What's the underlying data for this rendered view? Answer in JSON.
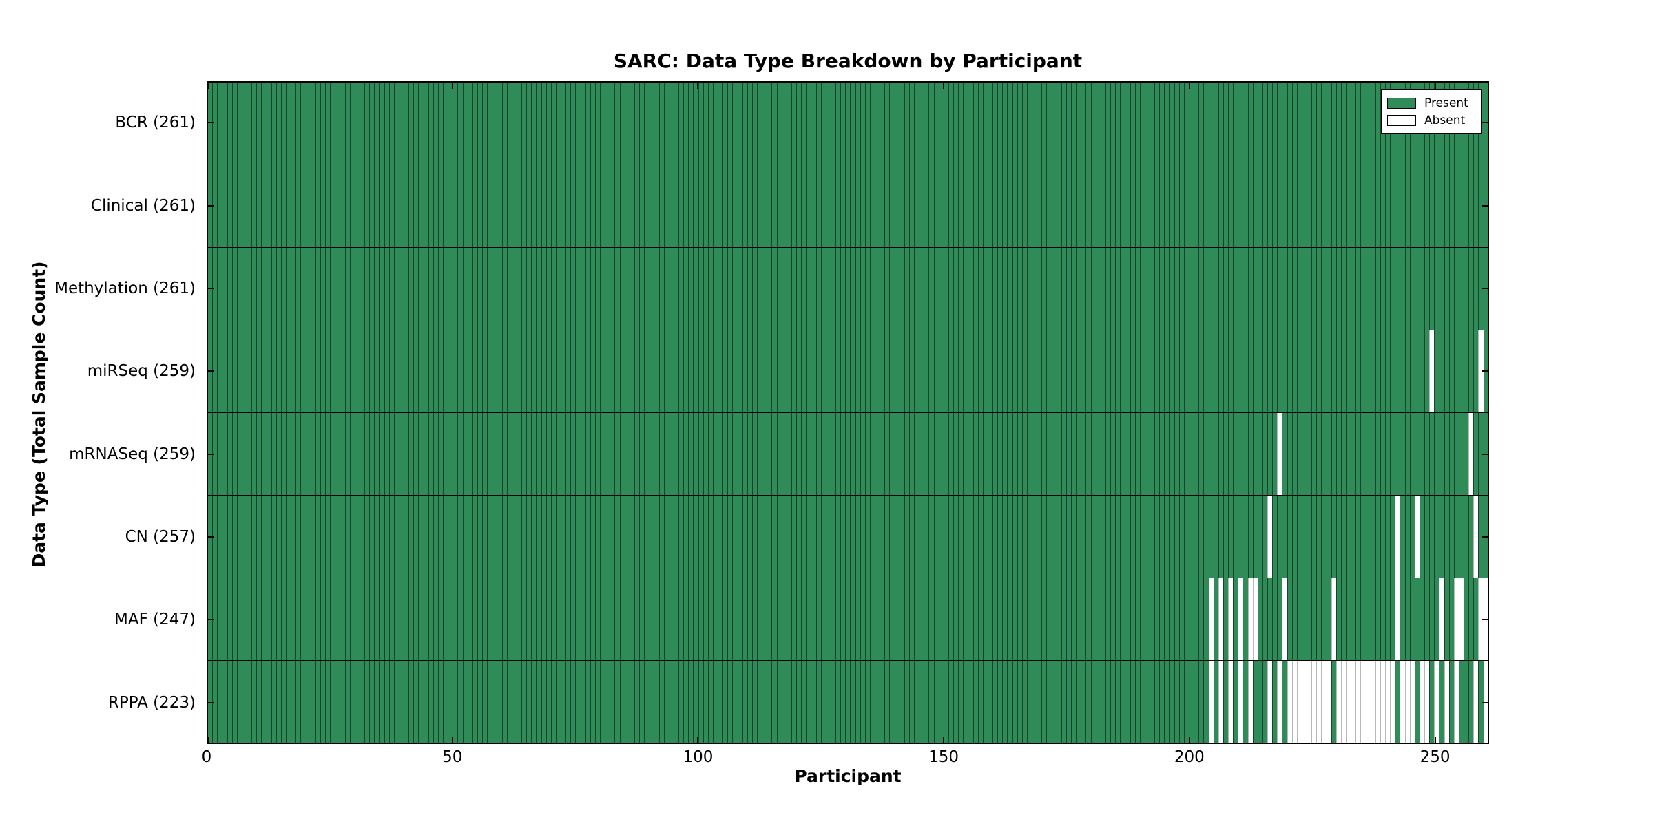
{
  "title": "SARC: Data Type Breakdown by Participant",
  "xlabel": "Participant",
  "ylabel": "Data Type (Total Sample Count)",
  "legend": {
    "present_label": "Present",
    "absent_label": "Absent"
  },
  "colors": {
    "present": "#2f8b57",
    "absent": "#ffffff",
    "axis": "#000000"
  },
  "chart_data": {
    "type": "heatmap",
    "title": "SARC: Data Type Breakdown by Participant",
    "xlabel": "Participant",
    "ylabel": "Data Type (Total Sample Count)",
    "legend_entries": [
      "Present",
      "Absent"
    ],
    "legend_position": "upper right",
    "grid": false,
    "n_participants": 261,
    "x_range": [
      0,
      261
    ],
    "x_ticks": [
      0,
      50,
      100,
      150,
      200,
      250
    ],
    "value_encoding": {
      "present": 1,
      "absent": 0
    },
    "rows": [
      {
        "label": "BCR (261)",
        "data_type": "BCR",
        "total_sample_count": 261,
        "absent_participants": []
      },
      {
        "label": "Clinical (261)",
        "data_type": "Clinical",
        "total_sample_count": 261,
        "absent_participants": []
      },
      {
        "label": "Methylation (261)",
        "data_type": "Methylation",
        "total_sample_count": 261,
        "absent_participants": []
      },
      {
        "label": "miRSeq (259)",
        "data_type": "miRSeq",
        "total_sample_count": 259,
        "absent_participants": [
          249,
          259
        ]
      },
      {
        "label": "mRNASeq (259)",
        "data_type": "mRNASeq",
        "total_sample_count": 259,
        "absent_participants": [
          218,
          257
        ]
      },
      {
        "label": "CN (257)",
        "data_type": "CN",
        "total_sample_count": 257,
        "absent_participants": [
          216,
          242,
          246,
          258
        ]
      },
      {
        "label": "MAF (247)",
        "data_type": "MAF",
        "total_sample_count": 247,
        "absent_participants": [
          204,
          206,
          208,
          210,
          212,
          213,
          219,
          229,
          242,
          251,
          254,
          255,
          259,
          260
        ]
      },
      {
        "label": "RPPA (223)",
        "data_type": "RPPA",
        "total_sample_count": 223,
        "absent_participants": [
          204,
          206,
          208,
          210,
          212,
          216,
          218,
          220,
          221,
          222,
          223,
          224,
          225,
          226,
          227,
          228,
          230,
          231,
          232,
          233,
          234,
          235,
          236,
          237,
          238,
          239,
          240,
          241,
          243,
          244,
          245,
          247,
          248,
          250,
          252,
          254,
          258,
          260
        ]
      }
    ]
  }
}
